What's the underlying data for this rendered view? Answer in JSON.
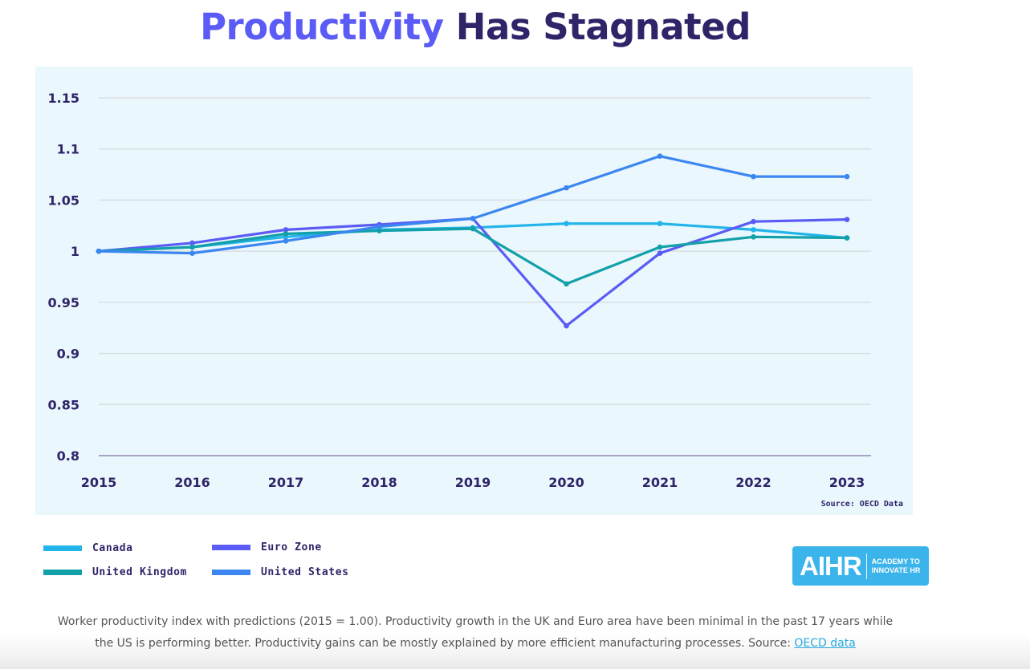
{
  "header": {
    "title_part1": "Productivity",
    "title_part2": "Has Stagnated"
  },
  "colors": {
    "title_accent": "#5b5cf5",
    "title_dark": "#2f2468",
    "panel_bg": "#eaf8fe",
    "logo_bg": "#3ab4ea"
  },
  "chart_data": {
    "type": "line",
    "title": "Productivity Has Stagnated",
    "xlabel": "",
    "ylabel": "",
    "x": [
      "2015",
      "2016",
      "2017",
      "2018",
      "2019",
      "2020",
      "2021",
      "2022",
      "2023"
    ],
    "y_ticks": [
      "1.15",
      "1.1",
      "1.05",
      "1",
      "0.95",
      "0.9",
      "0.85",
      "0.8"
    ],
    "y_tick_values": [
      1.15,
      1.1,
      1.05,
      1.0,
      0.95,
      0.9,
      0.85,
      0.8
    ],
    "ylim": [
      0.8,
      1.15
    ],
    "grid": true,
    "legend_position": "bottom-left",
    "source_note": "Source: OECD Data",
    "series": [
      {
        "name": "Canada",
        "color": "#22b4ea",
        "values": [
          1.0,
          1.004,
          1.014,
          1.021,
          1.023,
          1.027,
          1.027,
          1.021,
          1.013
        ]
      },
      {
        "name": "Euro Zone",
        "color": "#5b5cf5",
        "values": [
          1.0,
          1.008,
          1.021,
          1.026,
          1.032,
          0.927,
          0.998,
          1.029,
          1.031
        ]
      },
      {
        "name": "United Kingdom",
        "color": "#13a0a8",
        "values": [
          1.0,
          1.004,
          1.017,
          1.02,
          1.022,
          0.968,
          1.004,
          1.014,
          1.013
        ]
      },
      {
        "name": "United States",
        "color": "#3b86f0",
        "values": [
          1.0,
          0.998,
          1.01,
          1.024,
          1.032,
          1.062,
          1.093,
          1.073,
          1.073
        ]
      }
    ]
  },
  "legend": {
    "items": [
      {
        "label": "Canada",
        "color": "#22b4ea"
      },
      {
        "label": "Euro Zone",
        "color": "#5b5cf5"
      },
      {
        "label": "United Kingdom",
        "color": "#13a0a8"
      },
      {
        "label": "United States",
        "color": "#3b86f0"
      }
    ]
  },
  "logo": {
    "main": "AIHR",
    "sub_line1": "ACADEMY TO",
    "sub_line2": "INNOVATE HR"
  },
  "caption": {
    "line1": "Worker productivity index with predictions (2015 = 1.00). Productivity growth in the UK and Euro area have been minimal in the past 17 years while",
    "line2": "the US is performing better. Productivity gains can be mostly explained by more efficient manufacturing processes. Source: ",
    "link": "OECD data"
  }
}
